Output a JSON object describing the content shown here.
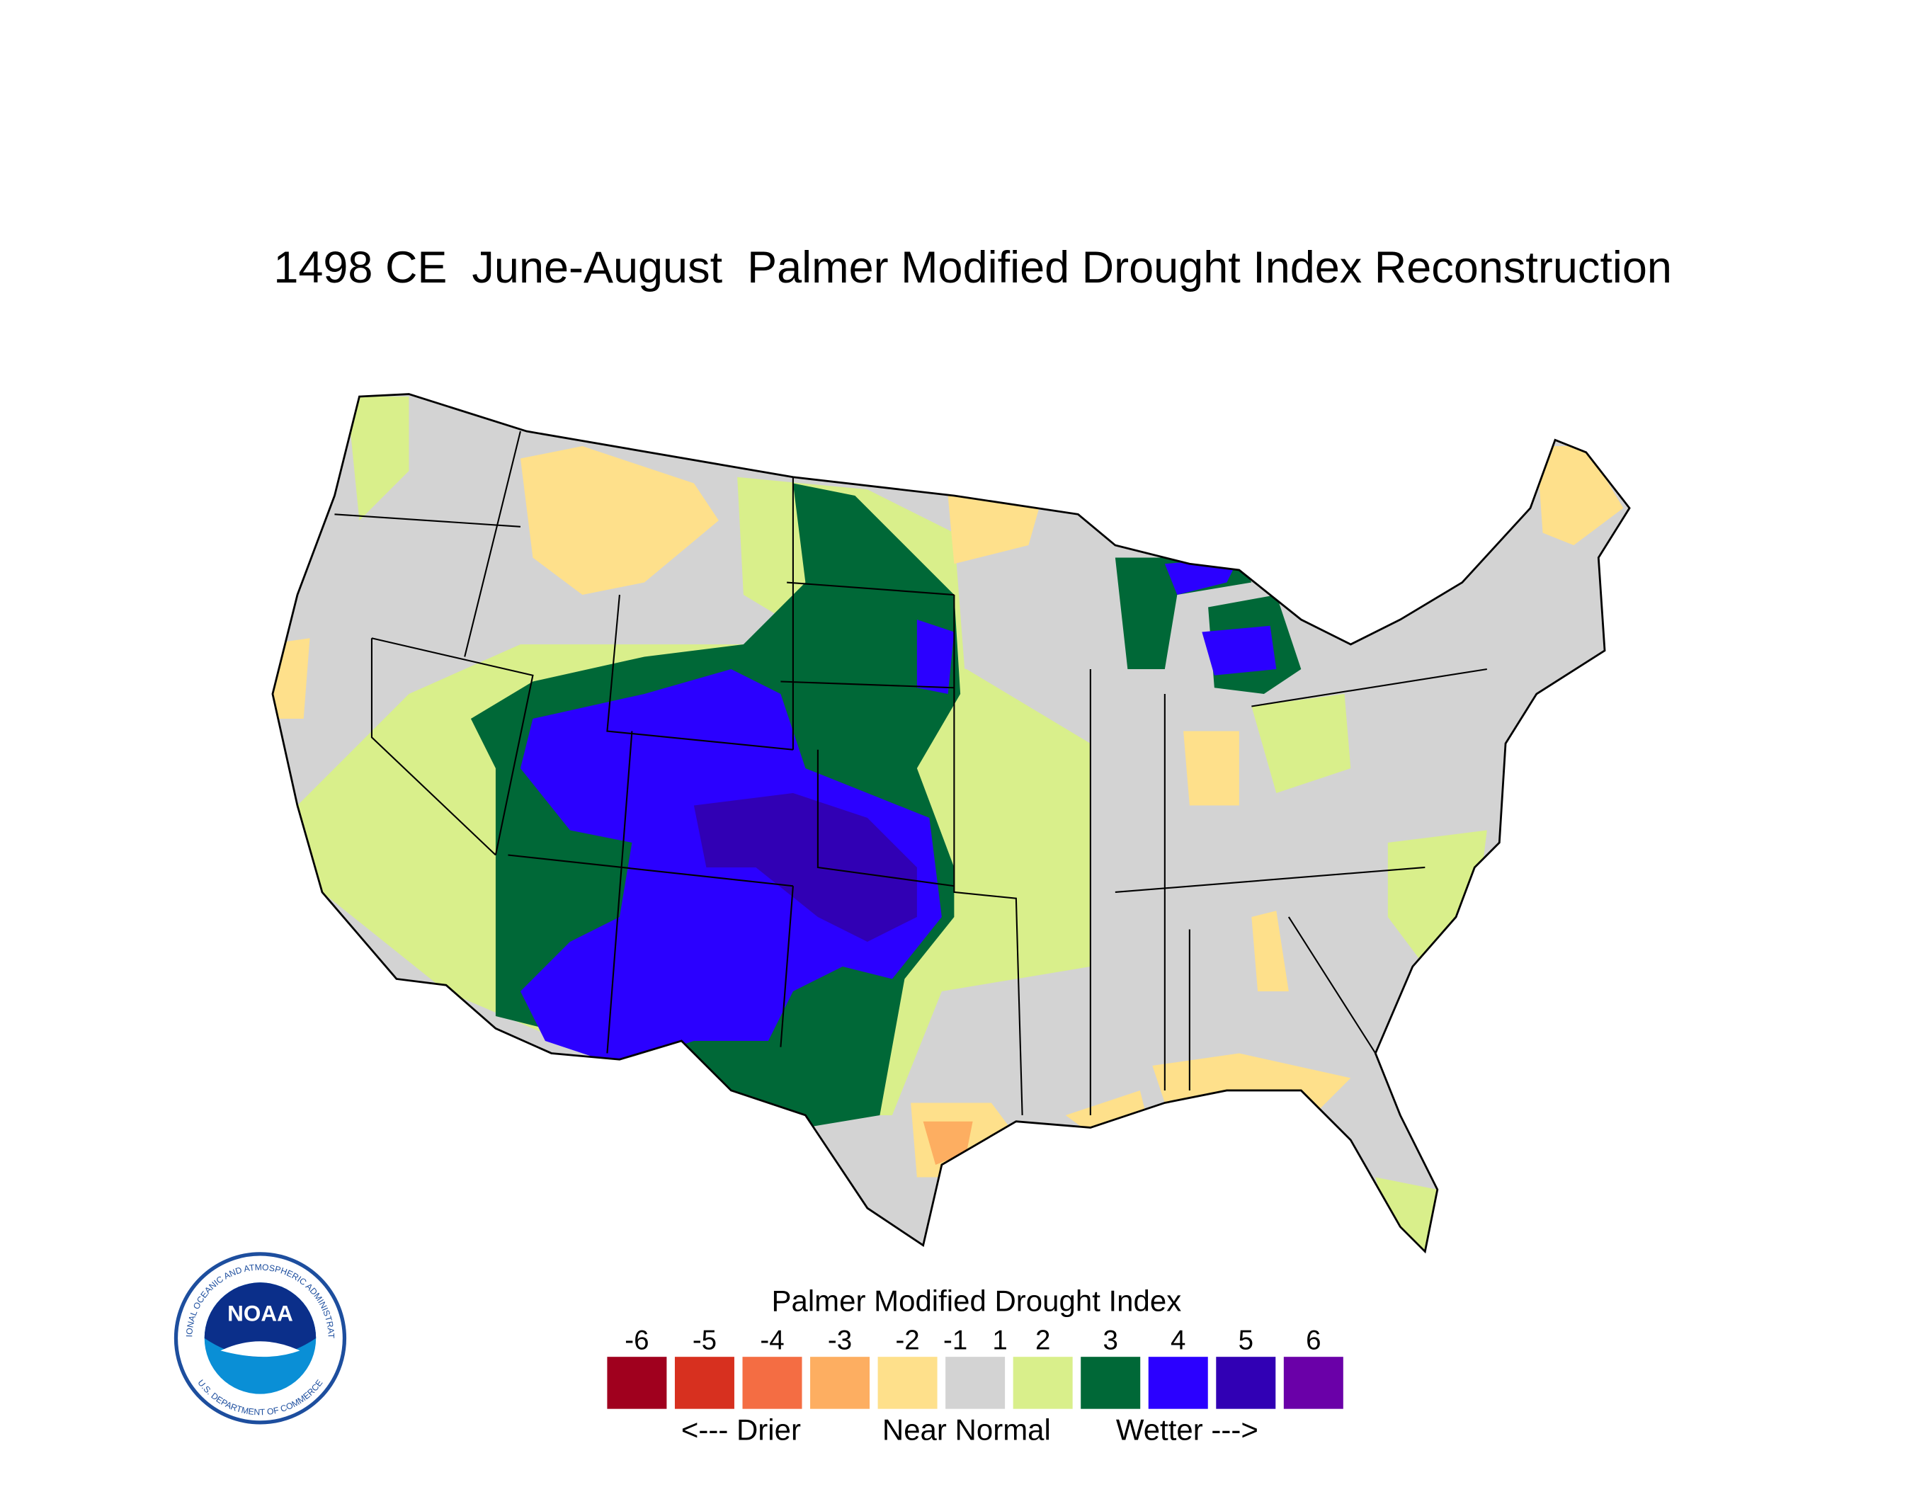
{
  "title": "1498 CE  June-August  Palmer Modified Drought Index Reconstruction",
  "legend": {
    "title": "Palmer Modified Drought Index",
    "ticks": [
      -6,
      -5,
      -4,
      -3,
      -2,
      -1,
      1,
      2,
      3,
      4,
      5,
      6
    ],
    "colors": [
      "#a0001e",
      "#d7301f",
      "#f46d43",
      "#fdae61",
      "#fee08b",
      "#d3d3d3",
      "#d9ef8b",
      "#006837",
      "#2b00ff",
      "#3100b4",
      "#6a00a8"
    ],
    "notes": [
      "<--- Drier",
      "Near Normal",
      "Wetter --->"
    ]
  },
  "logo": {
    "name": "NOAA",
    "ring_top": "NATIONAL OCEANIC AND ATMOSPHERIC ADMINISTRATION",
    "ring_bottom": "U.S. DEPARTMENT OF COMMERCE"
  }
}
